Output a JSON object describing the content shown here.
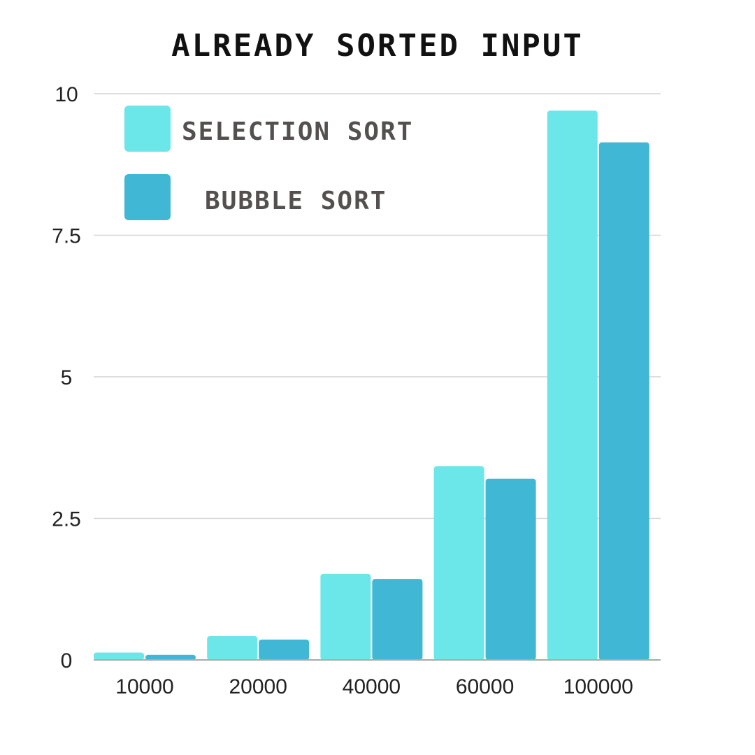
{
  "chart_data": {
    "type": "bar",
    "title": "ALREADY SORTED INPUT",
    "xlabel": "",
    "ylabel": "",
    "categories": [
      "10000",
      "20000",
      "40000",
      "60000",
      "100000"
    ],
    "series": [
      {
        "name": "SELECTION SORT",
        "color": "#6be6e9",
        "values": [
          0.13,
          0.42,
          1.52,
          3.42,
          9.7
        ]
      },
      {
        "name": "BUBBLE SORT",
        "color": "#41b7d6",
        "values": [
          0.09,
          0.36,
          1.43,
          3.2,
          9.14
        ]
      }
    ],
    "ylim": [
      0,
      10
    ],
    "yticks": [
      "0",
      "2.5",
      "5",
      "7.5",
      "10"
    ],
    "grid": true,
    "legend": "top-left"
  }
}
